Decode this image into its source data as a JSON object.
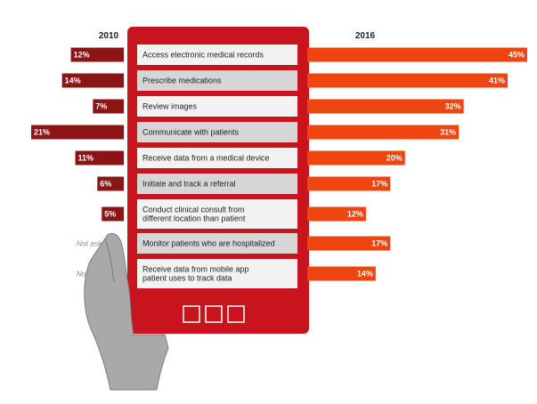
{
  "chart_data": {
    "type": "bar",
    "title": "",
    "xlabel": "",
    "ylabel": "",
    "categories": [
      [
        "Access electronic medical records"
      ],
      [
        "Prescribe medications"
      ],
      [
        "Review images"
      ],
      [
        "Communicate with patients"
      ],
      [
        "Receive data from a medical device"
      ],
      [
        "Initiate and track a referral"
      ],
      [
        "Conduct clinical consult from",
        "different location than patient"
      ],
      [
        "Monitor patients who are hospitalized"
      ],
      [
        "Receive data from mobile app",
        "patient uses to track data"
      ]
    ],
    "series": [
      {
        "name": "2010",
        "values": [
          12,
          14,
          7,
          21,
          11,
          6,
          5,
          null,
          null
        ],
        "labels": [
          "12%",
          "14%",
          "7%",
          "21%",
          "11%",
          "6%",
          "5%",
          "Not asked",
          "Not asked"
        ],
        "color": "#8b1414"
      },
      {
        "name": "2016",
        "values": [
          45,
          41,
          32,
          31,
          20,
          17,
          12,
          17,
          14
        ],
        "labels": [
          "45%",
          "41%",
          "32%",
          "31%",
          "20%",
          "17%",
          "12%",
          "17%",
          "14%"
        ],
        "color": "#ee4511"
      }
    ],
    "ylim": [
      0,
      45
    ]
  },
  "colors": {
    "tablet": "#c8141c",
    "row_light": "#f2f2f2",
    "row_dark": "#d6d6d6",
    "hand": "#a9a9a9"
  }
}
